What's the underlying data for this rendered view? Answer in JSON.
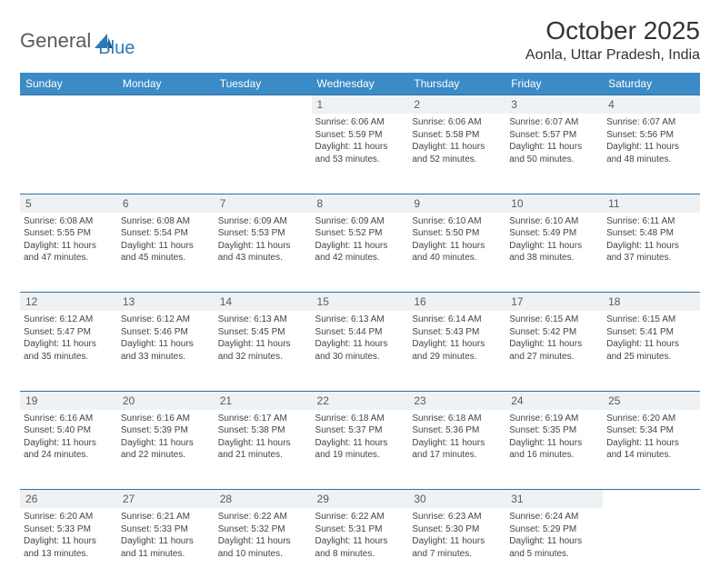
{
  "logo": {
    "part1": "General",
    "part2": "Blue"
  },
  "title": "October 2025",
  "location": "Aonla, Uttar Pradesh, India",
  "colors": {
    "header_bg": "#3b8bc6",
    "header_text": "#ffffff",
    "daynum_bg": "#eef2f5",
    "daynum_border": "#2f6fa3",
    "body_text": "#444444",
    "logo_gray": "#5a5a5a",
    "logo_blue": "#2a7ab8"
  },
  "daysOfWeek": [
    "Sunday",
    "Monday",
    "Tuesday",
    "Wednesday",
    "Thursday",
    "Friday",
    "Saturday"
  ],
  "weeks": [
    [
      null,
      null,
      null,
      {
        "n": "1",
        "sr": "Sunrise: 6:06 AM",
        "ss": "Sunset: 5:59 PM",
        "d1": "Daylight: 11 hours",
        "d2": "and 53 minutes."
      },
      {
        "n": "2",
        "sr": "Sunrise: 6:06 AM",
        "ss": "Sunset: 5:58 PM",
        "d1": "Daylight: 11 hours",
        "d2": "and 52 minutes."
      },
      {
        "n": "3",
        "sr": "Sunrise: 6:07 AM",
        "ss": "Sunset: 5:57 PM",
        "d1": "Daylight: 11 hours",
        "d2": "and 50 minutes."
      },
      {
        "n": "4",
        "sr": "Sunrise: 6:07 AM",
        "ss": "Sunset: 5:56 PM",
        "d1": "Daylight: 11 hours",
        "d2": "and 48 minutes."
      }
    ],
    [
      {
        "n": "5",
        "sr": "Sunrise: 6:08 AM",
        "ss": "Sunset: 5:55 PM",
        "d1": "Daylight: 11 hours",
        "d2": "and 47 minutes."
      },
      {
        "n": "6",
        "sr": "Sunrise: 6:08 AM",
        "ss": "Sunset: 5:54 PM",
        "d1": "Daylight: 11 hours",
        "d2": "and 45 minutes."
      },
      {
        "n": "7",
        "sr": "Sunrise: 6:09 AM",
        "ss": "Sunset: 5:53 PM",
        "d1": "Daylight: 11 hours",
        "d2": "and 43 minutes."
      },
      {
        "n": "8",
        "sr": "Sunrise: 6:09 AM",
        "ss": "Sunset: 5:52 PM",
        "d1": "Daylight: 11 hours",
        "d2": "and 42 minutes."
      },
      {
        "n": "9",
        "sr": "Sunrise: 6:10 AM",
        "ss": "Sunset: 5:50 PM",
        "d1": "Daylight: 11 hours",
        "d2": "and 40 minutes."
      },
      {
        "n": "10",
        "sr": "Sunrise: 6:10 AM",
        "ss": "Sunset: 5:49 PM",
        "d1": "Daylight: 11 hours",
        "d2": "and 38 minutes."
      },
      {
        "n": "11",
        "sr": "Sunrise: 6:11 AM",
        "ss": "Sunset: 5:48 PM",
        "d1": "Daylight: 11 hours",
        "d2": "and 37 minutes."
      }
    ],
    [
      {
        "n": "12",
        "sr": "Sunrise: 6:12 AM",
        "ss": "Sunset: 5:47 PM",
        "d1": "Daylight: 11 hours",
        "d2": "and 35 minutes."
      },
      {
        "n": "13",
        "sr": "Sunrise: 6:12 AM",
        "ss": "Sunset: 5:46 PM",
        "d1": "Daylight: 11 hours",
        "d2": "and 33 minutes."
      },
      {
        "n": "14",
        "sr": "Sunrise: 6:13 AM",
        "ss": "Sunset: 5:45 PM",
        "d1": "Daylight: 11 hours",
        "d2": "and 32 minutes."
      },
      {
        "n": "15",
        "sr": "Sunrise: 6:13 AM",
        "ss": "Sunset: 5:44 PM",
        "d1": "Daylight: 11 hours",
        "d2": "and 30 minutes."
      },
      {
        "n": "16",
        "sr": "Sunrise: 6:14 AM",
        "ss": "Sunset: 5:43 PM",
        "d1": "Daylight: 11 hours",
        "d2": "and 29 minutes."
      },
      {
        "n": "17",
        "sr": "Sunrise: 6:15 AM",
        "ss": "Sunset: 5:42 PM",
        "d1": "Daylight: 11 hours",
        "d2": "and 27 minutes."
      },
      {
        "n": "18",
        "sr": "Sunrise: 6:15 AM",
        "ss": "Sunset: 5:41 PM",
        "d1": "Daylight: 11 hours",
        "d2": "and 25 minutes."
      }
    ],
    [
      {
        "n": "19",
        "sr": "Sunrise: 6:16 AM",
        "ss": "Sunset: 5:40 PM",
        "d1": "Daylight: 11 hours",
        "d2": "and 24 minutes."
      },
      {
        "n": "20",
        "sr": "Sunrise: 6:16 AM",
        "ss": "Sunset: 5:39 PM",
        "d1": "Daylight: 11 hours",
        "d2": "and 22 minutes."
      },
      {
        "n": "21",
        "sr": "Sunrise: 6:17 AM",
        "ss": "Sunset: 5:38 PM",
        "d1": "Daylight: 11 hours",
        "d2": "and 21 minutes."
      },
      {
        "n": "22",
        "sr": "Sunrise: 6:18 AM",
        "ss": "Sunset: 5:37 PM",
        "d1": "Daylight: 11 hours",
        "d2": "and 19 minutes."
      },
      {
        "n": "23",
        "sr": "Sunrise: 6:18 AM",
        "ss": "Sunset: 5:36 PM",
        "d1": "Daylight: 11 hours",
        "d2": "and 17 minutes."
      },
      {
        "n": "24",
        "sr": "Sunrise: 6:19 AM",
        "ss": "Sunset: 5:35 PM",
        "d1": "Daylight: 11 hours",
        "d2": "and 16 minutes."
      },
      {
        "n": "25",
        "sr": "Sunrise: 6:20 AM",
        "ss": "Sunset: 5:34 PM",
        "d1": "Daylight: 11 hours",
        "d2": "and 14 minutes."
      }
    ],
    [
      {
        "n": "26",
        "sr": "Sunrise: 6:20 AM",
        "ss": "Sunset: 5:33 PM",
        "d1": "Daylight: 11 hours",
        "d2": "and 13 minutes."
      },
      {
        "n": "27",
        "sr": "Sunrise: 6:21 AM",
        "ss": "Sunset: 5:33 PM",
        "d1": "Daylight: 11 hours",
        "d2": "and 11 minutes."
      },
      {
        "n": "28",
        "sr": "Sunrise: 6:22 AM",
        "ss": "Sunset: 5:32 PM",
        "d1": "Daylight: 11 hours",
        "d2": "and 10 minutes."
      },
      {
        "n": "29",
        "sr": "Sunrise: 6:22 AM",
        "ss": "Sunset: 5:31 PM",
        "d1": "Daylight: 11 hours",
        "d2": "and 8 minutes."
      },
      {
        "n": "30",
        "sr": "Sunrise: 6:23 AM",
        "ss": "Sunset: 5:30 PM",
        "d1": "Daylight: 11 hours",
        "d2": "and 7 minutes."
      },
      {
        "n": "31",
        "sr": "Sunrise: 6:24 AM",
        "ss": "Sunset: 5:29 PM",
        "d1": "Daylight: 11 hours",
        "d2": "and 5 minutes."
      },
      null
    ]
  ]
}
